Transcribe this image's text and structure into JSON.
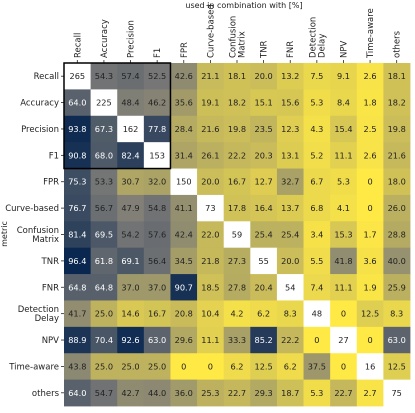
{
  "chart_data": {
    "type": "heatmap",
    "title": "used in combination with [%]",
    "xlabel": "",
    "ylabel": "metric",
    "columns": [
      "Recall",
      "Accuracy",
      "Precision",
      "F1",
      "FPR",
      "Curve-based",
      "Confusion\nMatrix",
      "TNR",
      "FNR",
      "Detection\nDelay",
      "NPV",
      "Time-aware",
      "others"
    ],
    "rows": [
      "Recall",
      "Accuracy",
      "Precision",
      "F1",
      "FPR",
      "Curve-based",
      "Confusion\nMatrix",
      "TNR",
      "FNR",
      "Detection\nDelay",
      "NPV",
      "Time-aware",
      "others"
    ],
    "diagonal_is_count": true,
    "highlighted_block": [
      "Recall",
      "Accuracy",
      "Precision",
      "F1"
    ],
    "values": [
      [
        265,
        54.3,
        57.4,
        52.5,
        42.6,
        21.1,
        18.1,
        20.0,
        13.2,
        7.5,
        9.1,
        2.6,
        18.1
      ],
      [
        64.0,
        225,
        48.4,
        46.2,
        35.6,
        19.1,
        18.2,
        15.1,
        15.6,
        5.3,
        8.4,
        1.8,
        18.2
      ],
      [
        93.8,
        67.3,
        162,
        77.8,
        28.4,
        21.6,
        19.8,
        23.5,
        12.3,
        4.3,
        15.4,
        2.5,
        19.8
      ],
      [
        90.8,
        68.0,
        82.4,
        153,
        31.4,
        26.1,
        22.2,
        20.3,
        13.1,
        5.2,
        11.1,
        2.6,
        21.6
      ],
      [
        75.3,
        53.3,
        30.7,
        32.0,
        150,
        20.0,
        16.7,
        12.7,
        32.7,
        6.7,
        5.3,
        0,
        18.0
      ],
      [
        76.7,
        56.7,
        47.9,
        54.8,
        41.1,
        73,
        17.8,
        16.4,
        13.7,
        6.8,
        4.1,
        0,
        26.0
      ],
      [
        81.4,
        69.5,
        54.2,
        57.6,
        42.4,
        22.0,
        59,
        25.4,
        25.4,
        3.4,
        15.3,
        1.7,
        28.8
      ],
      [
        96.4,
        61.8,
        69.1,
        56.4,
        34.5,
        21.8,
        27.3,
        55,
        20.0,
        5.5,
        41.8,
        3.6,
        40.0
      ],
      [
        64.8,
        64.8,
        37.0,
        37.0,
        90.7,
        18.5,
        27.8,
        20.4,
        54,
        7.4,
        11.1,
        1.9,
        25.9
      ],
      [
        41.7,
        25.0,
        14.6,
        16.7,
        20.8,
        10.4,
        4.2,
        6.2,
        8.3,
        48,
        0,
        12.5,
        8.3
      ],
      [
        88.9,
        70.4,
        92.6,
        63.0,
        29.6,
        11.1,
        33.3,
        85.2,
        22.2,
        0,
        27,
        0,
        63.0
      ],
      [
        43.8,
        25.0,
        25.0,
        25.0,
        0,
        0,
        6.2,
        12.5,
        6.2,
        37.5,
        0,
        16,
        12.5
      ],
      [
        64.0,
        54.7,
        42.7,
        44.0,
        36.0,
        25.3,
        22.7,
        29.3,
        18.7,
        5.3,
        22.7,
        2.7,
        75
      ]
    ],
    "colormap": [
      "#ffe945",
      "#00204c"
    ],
    "diagonal_color": "#ffffff",
    "value_range": [
      0,
      100
    ],
    "grid": false
  }
}
